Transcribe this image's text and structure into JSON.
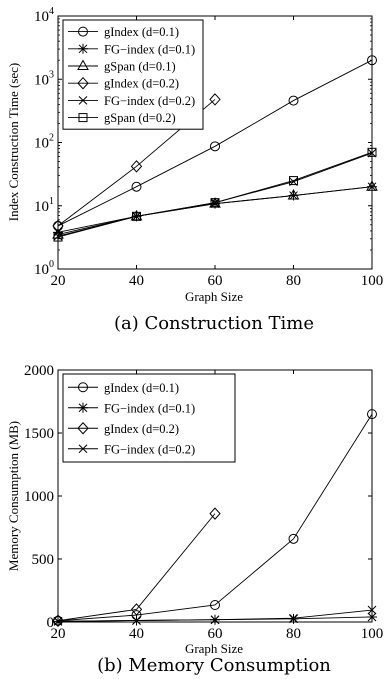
{
  "chart_data": [
    {
      "type": "line",
      "title": "",
      "caption": "(a) Construction Time",
      "xlabel": "Graph Size",
      "ylabel": "Index Construction Time (sec)",
      "yscale": "log",
      "xlim": [
        20,
        100
      ],
      "ylim": [
        1,
        10000
      ],
      "x_ticks": [
        "20",
        "40",
        "60",
        "80",
        "100"
      ],
      "y_ticks": [
        {
          "base": "10",
          "exp": "0",
          "value": 1
        },
        {
          "base": "10",
          "exp": "1",
          "value": 10
        },
        {
          "base": "10",
          "exp": "2",
          "value": 100
        },
        {
          "base": "10",
          "exp": "3",
          "value": 1000
        },
        {
          "base": "10",
          "exp": "4",
          "value": 10000
        }
      ],
      "legend_position": "top-left",
      "series": [
        {
          "name": "gIndex (d=0.1)",
          "marker": "circle",
          "x": [
            20,
            40,
            60,
            80,
            100
          ],
          "values": [
            4.8,
            20,
            87,
            460,
            2000
          ]
        },
        {
          "name": "FG−index (d=0.1)",
          "marker": "asterisk",
          "x": [
            20,
            40,
            60,
            80,
            100
          ],
          "values": [
            3.8,
            6.8,
            10.8,
            14.5,
            20
          ]
        },
        {
          "name": "gSpan (d=0.1)",
          "marker": "triangle",
          "x": [
            20,
            40,
            60,
            80,
            100
          ],
          "values": [
            3.5,
            6.8,
            10.8,
            14.5,
            20
          ]
        },
        {
          "name": "gIndex (d=0.2)",
          "marker": "diamond",
          "x": [
            20,
            40,
            60
          ],
          "values": [
            4.8,
            42,
            480
          ]
        },
        {
          "name": "FG−index (d=0.2)",
          "marker": "cross",
          "x": [
            20,
            40,
            60,
            80,
            100
          ],
          "values": [
            3.3,
            6.8,
            11.2,
            24,
            68
          ]
        },
        {
          "name": "gSpan (d=0.2)",
          "marker": "square",
          "x": [
            20,
            40,
            60,
            80,
            100
          ],
          "values": [
            3.2,
            6.8,
            11.2,
            25,
            70
          ]
        }
      ]
    },
    {
      "type": "line",
      "title": "",
      "caption": "(b) Memory Consumption",
      "xlabel": "Graph Size",
      "ylabel": "Memory Consumption (MB)",
      "yscale": "linear",
      "xlim": [
        20,
        100
      ],
      "ylim": [
        0,
        2000
      ],
      "x_ticks": [
        "20",
        "40",
        "60",
        "80",
        "100"
      ],
      "y_ticks": [
        "0",
        "500",
        "1000",
        "1500",
        "2000"
      ],
      "legend_position": "top-left",
      "series": [
        {
          "name": "gIndex (d=0.1)",
          "marker": "circle",
          "x": [
            20,
            40,
            60,
            80,
            100
          ],
          "values": [
            10,
            55,
            135,
            660,
            1650
          ]
        },
        {
          "name": "FG−index (d=0.1)",
          "marker": "asterisk",
          "x": [
            20,
            40,
            60,
            80,
            100
          ],
          "values": [
            5,
            12,
            18,
            25,
            40
          ]
        },
        {
          "name": "gIndex (d=0.2)",
          "marker": "diamond",
          "x": [
            20,
            40,
            60
          ],
          "values": [
            10,
            100,
            860
          ]
        },
        {
          "name": "FG−index (d=0.2)",
          "marker": "cross",
          "x": [
            20,
            40,
            60,
            80,
            100
          ],
          "values": [
            5,
            12,
            18,
            30,
            95
          ]
        }
      ]
    }
  ]
}
